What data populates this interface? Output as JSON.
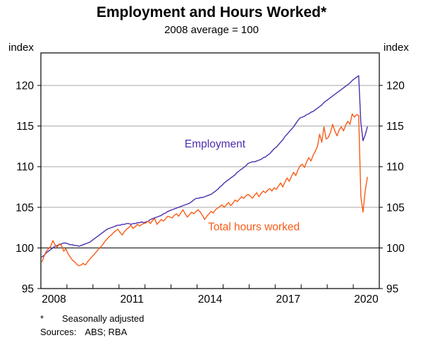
{
  "chart_data": {
    "type": "line",
    "title": "Employment and Hours Worked*",
    "subtitle": "2008 average = 100",
    "ylabel_left": "index",
    "ylabel_right": "index",
    "yticks": [
      95,
      100,
      105,
      110,
      115,
      120
    ],
    "ylim": [
      95,
      124
    ],
    "baseline_value": 100,
    "xlim": [
      2008,
      2021
    ],
    "xtick_years": [
      2008,
      2009,
      2010,
      2011,
      2012,
      2013,
      2014,
      2015,
      2016,
      2017,
      2018,
      2019,
      2020
    ],
    "xtick_labels": [
      "2008",
      "2011",
      "2014",
      "2017",
      "2020"
    ],
    "grid": "horizontal",
    "frequency": "monthly",
    "x_start": "2008-01",
    "x_end": "2020-07",
    "colors": {
      "employment": "#4c2fae",
      "hours": "#f85b16",
      "grid": "#a8a8a8",
      "frame": "#000000"
    },
    "series": [
      {
        "name": "Employment",
        "color": "#4c2fae",
        "values": [
          98.9,
          99.1,
          99.4,
          99.6,
          99.8,
          100.0,
          100.2,
          100.3,
          100.4,
          100.5,
          100.6,
          100.6,
          100.5,
          100.4,
          100.4,
          100.3,
          100.3,
          100.2,
          100.3,
          100.4,
          100.5,
          100.6,
          100.7,
          100.9,
          101.1,
          101.3,
          101.5,
          101.7,
          101.9,
          102.1,
          102.3,
          102.4,
          102.5,
          102.6,
          102.7,
          102.8,
          102.8,
          102.9,
          102.9,
          103.0,
          103.0,
          102.9,
          103.0,
          103.0,
          103.1,
          103.1,
          103.2,
          103.1,
          103.2,
          103.3,
          103.5,
          103.6,
          103.7,
          103.8,
          103.9,
          104.0,
          104.2,
          104.3,
          104.5,
          104.6,
          104.7,
          104.8,
          104.9,
          105.0,
          105.1,
          105.2,
          105.3,
          105.4,
          105.5,
          105.7,
          105.9,
          106.1,
          106.1,
          106.2,
          106.2,
          106.3,
          106.4,
          106.5,
          106.6,
          106.8,
          107.0,
          107.2,
          107.5,
          107.7,
          108.0,
          108.2,
          108.4,
          108.6,
          108.8,
          109.0,
          109.3,
          109.5,
          109.7,
          109.9,
          110.1,
          110.4,
          110.5,
          110.6,
          110.6,
          110.7,
          110.8,
          110.9,
          111.1,
          111.2,
          111.4,
          111.6,
          111.9,
          112.2,
          112.4,
          112.7,
          113.0,
          113.3,
          113.7,
          114.0,
          114.3,
          114.6,
          114.9,
          115.3,
          115.7,
          116.0,
          116.1,
          116.2,
          116.4,
          116.5,
          116.7,
          116.8,
          117.0,
          117.2,
          117.4,
          117.6,
          117.9,
          118.1,
          118.3,
          118.5,
          118.7,
          118.9,
          119.1,
          119.3,
          119.5,
          119.7,
          119.9,
          120.1,
          120.3,
          120.6,
          120.8,
          121.0,
          121.2,
          115.4,
          113.2,
          113.9,
          114.9
        ]
      },
      {
        "name": "Total hours worked",
        "color": "#f85b16",
        "values": [
          98.3,
          99.0,
          99.6,
          99.9,
          100.2,
          100.9,
          100.4,
          100.1,
          100.5,
          100.3,
          99.6,
          99.9,
          99.3,
          98.9,
          98.5,
          98.3,
          98.0,
          97.8,
          97.9,
          98.1,
          97.9,
          98.3,
          98.6,
          98.9,
          99.2,
          99.5,
          99.8,
          100.1,
          100.4,
          100.8,
          101.1,
          101.4,
          101.6,
          101.9,
          102.1,
          102.3,
          101.9,
          101.6,
          102.0,
          102.3,
          102.5,
          102.8,
          102.4,
          102.6,
          102.9,
          102.7,
          102.9,
          103.0,
          103.1,
          103.3,
          103.0,
          103.4,
          103.6,
          102.9,
          103.2,
          103.5,
          103.3,
          103.6,
          103.9,
          103.8,
          103.7,
          104.0,
          104.2,
          103.9,
          104.3,
          104.7,
          104.2,
          103.8,
          104.1,
          104.4,
          104.2,
          104.5,
          104.7,
          104.4,
          104.0,
          103.5,
          103.9,
          104.2,
          104.5,
          104.3,
          104.7,
          104.9,
          105.1,
          105.3,
          105.0,
          105.3,
          105.6,
          105.2,
          105.5,
          105.9,
          105.7,
          106.0,
          106.3,
          106.1,
          106.4,
          106.6,
          106.4,
          106.1,
          106.5,
          106.8,
          106.3,
          106.7,
          107.0,
          106.8,
          107.1,
          107.3,
          107.0,
          107.4,
          107.2,
          107.6,
          108.0,
          107.5,
          108.1,
          108.6,
          108.2,
          108.8,
          109.3,
          108.9,
          109.6,
          110.1,
          110.3,
          109.9,
          110.6,
          111.1,
          110.7,
          111.4,
          111.9,
          112.5,
          114.0,
          113.0,
          114.9,
          113.4,
          113.6,
          114.2,
          115.2,
          114.4,
          113.8,
          114.5,
          114.9,
          114.4,
          115.1,
          115.6,
          115.2,
          116.5,
          116.1,
          116.4,
          116.3,
          106.3,
          104.4,
          107.0,
          108.7
        ]
      }
    ],
    "annotations": [
      {
        "text": "Employment",
        "x": 2014.69,
        "y": 112.8,
        "color": "#4c2fae"
      },
      {
        "text": "Total hours worked",
        "x": 2016.18,
        "y": 102.6,
        "color": "#f85b16"
      }
    ],
    "legend_position": "inline-labels"
  },
  "footnote": {
    "marker": "*",
    "text": "Seasonally adjusted"
  },
  "sources": {
    "label": "Sources:",
    "text": "ABS; RBA"
  }
}
